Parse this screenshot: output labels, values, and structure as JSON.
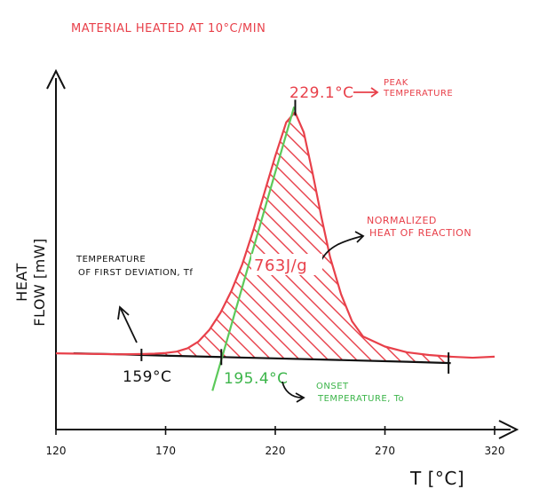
{
  "chart_data": {
    "type": "line",
    "title": "MATERIAL HEATED AT 10°C/MIN",
    "xlabel": "T [°C]",
    "ylabel_line1": "HEAT",
    "ylabel_line2": "FLOW [mW]",
    "x_ticks": [
      "120",
      "170",
      "220",
      "270",
      "320"
    ],
    "xlim": [
      120,
      320
    ],
    "series": [
      {
        "name": "DSC curve",
        "x": [
          120,
          130,
          140,
          150,
          160,
          165,
          170,
          175,
          180,
          185,
          190,
          195,
          200,
          205,
          210,
          215,
          220,
          225,
          229,
          233,
          237,
          241,
          245,
          250,
          255,
          260,
          270,
          280,
          290,
          300,
          310,
          320
        ],
        "y": [
          0.05,
          0.04,
          0.03,
          0.02,
          0.03,
          0.04,
          0.06,
          0.1,
          0.2,
          0.4,
          0.75,
          1.25,
          1.9,
          2.7,
          3.7,
          4.8,
          5.9,
          6.9,
          7.2,
          6.6,
          5.4,
          4.1,
          2.9,
          1.8,
          1.0,
          0.55,
          0.25,
          0.08,
          0.0,
          -0.05,
          -0.08,
          -0.05
        ]
      },
      {
        "name": "Baseline",
        "x": [
          128,
          150,
          170,
          195,
          220,
          250,
          280,
          300
        ],
        "y": [
          0.05,
          0.02,
          -0.02,
          -0.06,
          -0.1,
          -0.15,
          -0.2,
          -0.24
        ]
      }
    ],
    "markers": {
      "first_deviation_x": 159,
      "onset_x": 195.4,
      "peak_x": 229.1,
      "end_x": 299
    },
    "annotations": {
      "peak_value": "229.1°C",
      "peak_label_1": "PEAK",
      "peak_label_2": "TEMPERATURE",
      "heat_value": "763J/g",
      "heat_label_1": "NORMALIZED",
      "heat_label_2": "HEAT OF REACTION",
      "first_dev_label_1": "TEMPERATURE",
      "first_dev_label_2": "OF FIRST DEVIATION, Tf",
      "first_dev_value": "159°C",
      "onset_value": "195.4°C",
      "onset_label_1": "ONSET",
      "onset_label_2": "TEMPERATURE, To"
    },
    "colors": {
      "curve": "#e8404a",
      "baseline": "#111111",
      "tangent": "#5cc95a",
      "axis": "#111111",
      "onset_text": "#3cb54a"
    }
  }
}
